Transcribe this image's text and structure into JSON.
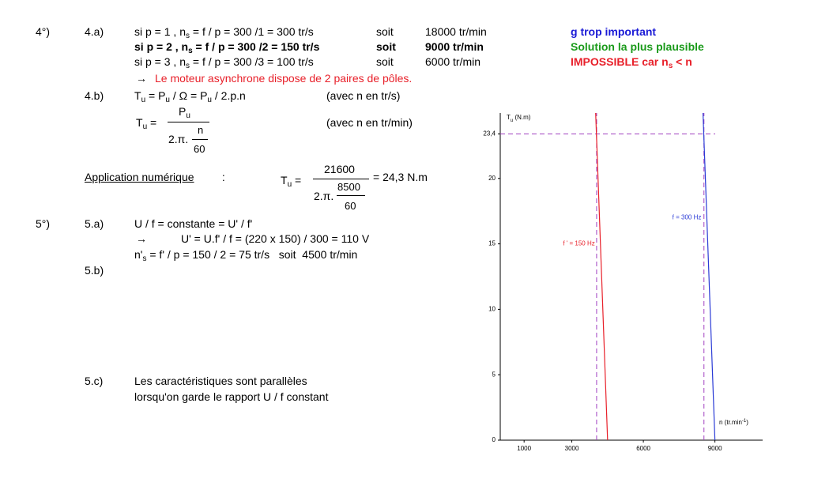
{
  "doc": {
    "q4": {
      "num": "4°)",
      "a": {
        "label": "4.a)",
        "rows": [
          {
            "parts": [
              "si p = 1 , n",
              "s",
              " = f / p = 300 /1 = 300 tr/s"
            ],
            "soit": "soit",
            "result": "18000 tr/min",
            "comment": [
              "g trop important"
            ]
          },
          {
            "parts": [
              "si p = 2 , n",
              "s",
              " = f / p = 300 /2 = 150 tr/s"
            ],
            "soit": "soit",
            "result": "9000 tr/min",
            "comment": [
              "Solution la plus plausible"
            ]
          },
          {
            "parts": [
              "si p = 3 , n",
              "s",
              " = f / p = 300 /3 = 100 tr/s"
            ],
            "soit": "soit",
            "result": "6000 tr/min",
            "comment": [
              "IMPOSSIBLE car n",
              "s",
              " < n"
            ]
          }
        ],
        "conclusion": {
          "arrow": "→",
          "text": "Le moteur asynchrone dispose de 2 paires de pôles."
        }
      },
      "b": {
        "label": "4.b)",
        "formula1": [
          "T",
          "u",
          " = P",
          "u",
          " / Ω = P",
          "u",
          " / 2.p.n"
        ],
        "note1": "(avec n en tr/s)",
        "formula2": {
          "lhs": [
            "T",
            "u",
            " ="
          ],
          "num": [
            "P",
            "u"
          ],
          "den": "2.π.",
          "den_num": "n",
          "den_den": "60"
        },
        "note2": "(avec n en tr/min)",
        "app": {
          "label": "Application numérique",
          "colon": " :",
          "lhs": [
            "T",
            "u",
            " ="
          ],
          "num": "21600",
          "den": "2.π.",
          "den_num": "8500",
          "den_den": "60",
          "result": "= 24,3 N.m"
        }
      }
    },
    "q5": {
      "num": "5°)",
      "a": {
        "label": "5.a)",
        "line1": "U / f = constante = U' / f'",
        "arrow": "→",
        "line2": "U' = U.f' / f = (220 x 150) / 300 = 110 V",
        "line3": [
          "n'",
          "s",
          " = f' / p = 150 / 2 = 75 tr/s   soit  4500 tr/min"
        ]
      },
      "b": {
        "label": "5.b)"
      },
      "c": {
        "label": "5.c)",
        "line1": "Les caractéristiques sont parallèles",
        "line2": "lorsqu'on garde le rapport U / f constant"
      }
    }
  },
  "chart_data": {
    "type": "line",
    "y_label": [
      "T",
      "u",
      " (N.m)"
    ],
    "x_label": [
      "n (tr.min",
      "-1",
      ")"
    ],
    "xlim": [
      0,
      11000
    ],
    "ylim": [
      0,
      25
    ],
    "xticks": [
      1000,
      3000,
      6000,
      9000
    ],
    "yticks": [
      0,
      5,
      10,
      15,
      20,
      {
        "value": 23.4,
        "label": "23,4"
      }
    ],
    "grid": false,
    "series": [
      {
        "name": "f ' = 150 Hz",
        "color": "#e8202a",
        "x": [
          4000,
          4500
        ],
        "values": [
          25,
          0
        ]
      },
      {
        "name": "f = 300 Hz",
        "color": "#2b3bd6",
        "x": [
          8500,
          9000
        ],
        "values": [
          25,
          0
        ]
      }
    ],
    "hlines": [
      23.4
    ],
    "vlines": [
      4040,
      8540
    ],
    "ref_color": "#a040c0"
  }
}
